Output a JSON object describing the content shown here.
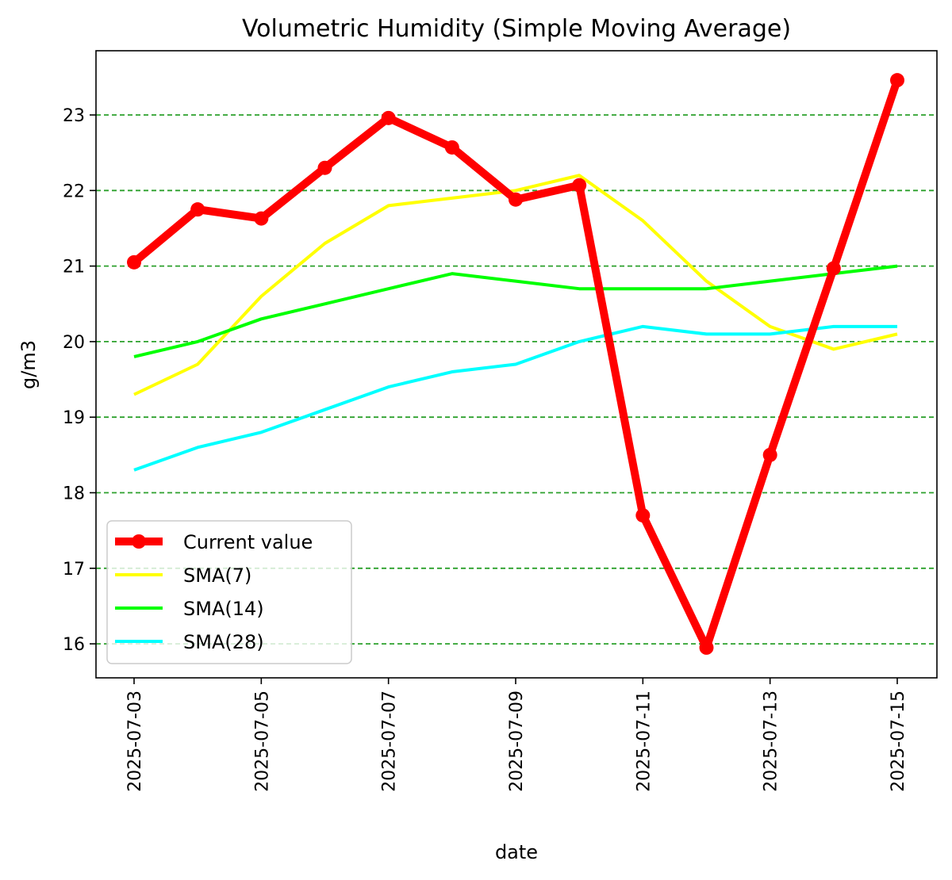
{
  "chart_data": {
    "type": "line",
    "title": "Volumetric Humidity (Simple Moving Average)",
    "xlabel": "date",
    "ylabel": "g/m3",
    "x": [
      "2025-07-03",
      "2025-07-04",
      "2025-07-05",
      "2025-07-06",
      "2025-07-07",
      "2025-07-08",
      "2025-07-09",
      "2025-07-10",
      "2025-07-11",
      "2025-07-12",
      "2025-07-13",
      "2025-07-14",
      "2025-07-15"
    ],
    "x_tick_labels": [
      "2025-07-03",
      "2025-07-05",
      "2025-07-07",
      "2025-07-09",
      "2025-07-11",
      "2025-07-13",
      "2025-07-15"
    ],
    "y_ticks": [
      16,
      17,
      18,
      19,
      20,
      21,
      22,
      23
    ],
    "ylim": [
      15.55,
      23.85
    ],
    "grid": "horizontal dashed",
    "legend_position": "lower-left",
    "series": [
      {
        "name": "Current value",
        "color": "#ff0000",
        "marker": "circle",
        "values": [
          21.05,
          21.75,
          21.63,
          22.3,
          22.96,
          22.57,
          21.88,
          22.07,
          17.7,
          15.95,
          18.5,
          20.97,
          23.46
        ]
      },
      {
        "name": "SMA(7)",
        "color": "#ffff00",
        "values": [
          19.3,
          19.7,
          20.6,
          21.3,
          21.8,
          21.9,
          22.0,
          22.2,
          21.6,
          20.8,
          20.2,
          19.9,
          20.1
        ]
      },
      {
        "name": "SMA(14)",
        "color": "#00ff00",
        "values": [
          19.8,
          20.0,
          20.3,
          20.5,
          20.7,
          20.9,
          20.8,
          20.7,
          20.7,
          20.7,
          20.8,
          20.9,
          21.0
        ]
      },
      {
        "name": "SMA(28)",
        "color": "#00ffff",
        "values": [
          18.3,
          18.6,
          18.8,
          19.1,
          19.4,
          19.6,
          19.7,
          20.0,
          20.2,
          20.1,
          20.1,
          20.2,
          20.2
        ]
      }
    ]
  }
}
